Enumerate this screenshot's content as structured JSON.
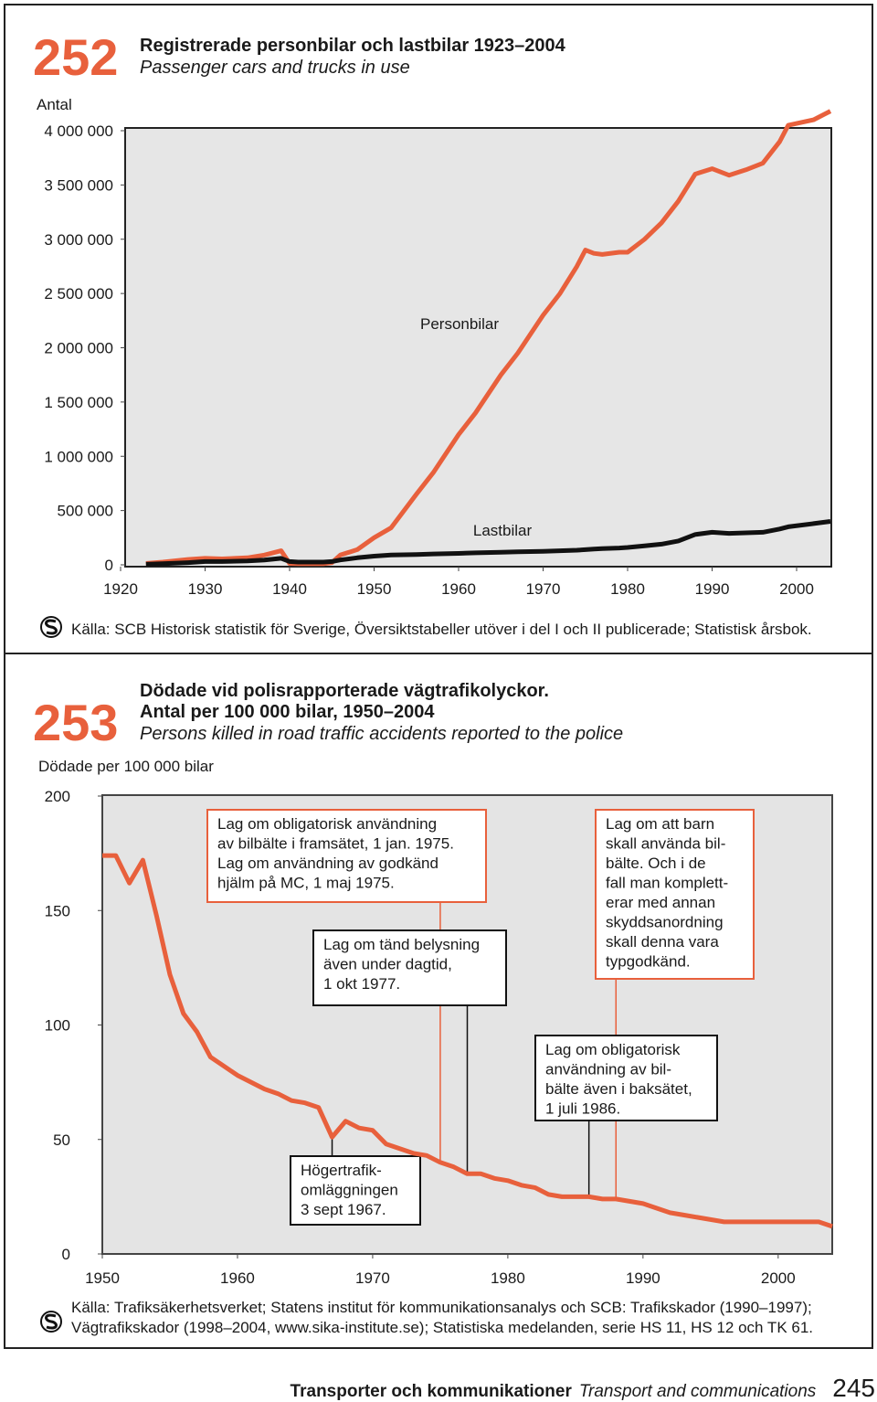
{
  "chart_data": [
    {
      "type": "line",
      "number": "252",
      "title": [
        "Registrerade personbilar och lastbilar 1923–2004"
      ],
      "subtitle": "Passenger cars and trucks in use",
      "y_label": "Antal",
      "x": [
        1923,
        1925,
        1928,
        1930,
        1932,
        1935,
        1937,
        1939,
        1940,
        1941,
        1944,
        1945,
        1946,
        1948,
        1950,
        1952,
        1955,
        1957,
        1960,
        1962,
        1965,
        1967,
        1970,
        1972,
        1974,
        1975,
        1976,
        1977,
        1979,
        1980,
        1982,
        1984,
        1986,
        1988,
        1990,
        1992,
        1994,
        1996,
        1998,
        1999,
        2002,
        2004
      ],
      "series": [
        {
          "name": "Personbilar",
          "color": "#e8603c",
          "values": [
            13000,
            25000,
            50000,
            60000,
            55000,
            65000,
            90000,
            130000,
            13000,
            10000,
            10000,
            20000,
            90000,
            140000,
            250000,
            340000,
            650000,
            850000,
            1200000,
            1400000,
            1750000,
            1950000,
            2300000,
            2500000,
            2750000,
            2900000,
            2870000,
            2860000,
            2880000,
            2880000,
            3000000,
            3150000,
            3350000,
            3600000,
            3650000,
            3590000,
            3640000,
            3700000,
            3900000,
            4050000,
            4100000,
            4180000
          ]
        },
        {
          "name": "Lastbilar",
          "color": "#111111",
          "values": [
            5000,
            10000,
            20000,
            30000,
            30000,
            35000,
            45000,
            60000,
            30000,
            25000,
            25000,
            30000,
            45000,
            65000,
            80000,
            90000,
            95000,
            100000,
            105000,
            110000,
            115000,
            120000,
            125000,
            130000,
            135000,
            140000,
            145000,
            150000,
            155000,
            160000,
            175000,
            190000,
            220000,
            280000,
            300000,
            290000,
            295000,
            300000,
            330000,
            350000,
            380000,
            400000
          ]
        }
      ],
      "xlim": [
        1920,
        2004
      ],
      "xticks": [
        1920,
        1930,
        1940,
        1950,
        1960,
        1970,
        1980,
        1990,
        2000
      ],
      "ylim": [
        0,
        4000000
      ],
      "yticks": [
        0,
        {
          "value": 500000,
          "label": "500 000"
        },
        {
          "value": 1000000,
          "label": "1 000 000"
        },
        {
          "value": 1500000,
          "label": "1 500 000"
        },
        {
          "value": 2000000,
          "label": "2 000 000"
        },
        {
          "value": 2500000,
          "label": "2 500 000"
        },
        {
          "value": 3000000,
          "label": "3 000 000"
        },
        {
          "value": 3500000,
          "label": "3 500 000"
        },
        {
          "value": 4000000,
          "label": "4 000 000"
        }
      ],
      "grid": false,
      "source": [
        "Källa: SCB Historisk statistik för Sverige, Översiktstabeller utöver i del I och II publicerade; Statistisk årsbok."
      ]
    },
    {
      "type": "line",
      "number": "253",
      "title": [
        "Dödade vid polisrapporterade vägtrafikolyckor.",
        "Antal per 100 000 bilar, 1950–2004"
      ],
      "subtitle": "Persons killed in road traffic accidents reported to the police",
      "y_label": "Dödade per 100 000 bilar",
      "x": [
        1950,
        1951,
        1952,
        1953,
        1954,
        1955,
        1956,
        1957,
        1958,
        1959,
        1960,
        1961,
        1962,
        1963,
        1964,
        1965,
        1966,
        1967,
        1968,
        1969,
        1970,
        1971,
        1972,
        1973,
        1974,
        1975,
        1976,
        1977,
        1978,
        1979,
        1980,
        1981,
        1982,
        1983,
        1984,
        1985,
        1986,
        1987,
        1988,
        1989,
        1990,
        1991,
        1992,
        1993,
        1994,
        1995,
        1996,
        1997,
        1998,
        1999,
        2000,
        2001,
        2002,
        2003,
        2004
      ],
      "series": [
        {
          "color": "#e8603c",
          "values": [
            174,
            174,
            162,
            172,
            148,
            122,
            105,
            97,
            86,
            82,
            78,
            75,
            72,
            70,
            67,
            66,
            64,
            51,
            58,
            55,
            54,
            48,
            46,
            44,
            43,
            40,
            38,
            35,
            35,
            33,
            32,
            30,
            29,
            26,
            25,
            25,
            25,
            24,
            24,
            23,
            22,
            20,
            18,
            17,
            16,
            15,
            14,
            14,
            14,
            14,
            14,
            14,
            14,
            14,
            12
          ]
        }
      ],
      "xlim": [
        1950,
        2004
      ],
      "xticks": [
        1950,
        1960,
        1970,
        1980,
        1990,
        2000
      ],
      "ylim": [
        0,
        200
      ],
      "yticks": [
        0,
        50,
        100,
        150,
        200
      ],
      "grid": false,
      "annotations": [
        {
          "x": 1975,
          "color": "#e8603c",
          "text": [
            "Lag om obligatorisk användning",
            "av bilbälte i framsätet, 1 jan. 1975.",
            "Lag om användning av godkänd",
            "hjälm på MC, 1 maj 1975."
          ]
        },
        {
          "x": 1977,
          "color": "#111111",
          "text": [
            "Lag om tänd belysning",
            "även under dagtid,",
            "1 okt 1977."
          ]
        },
        {
          "x": 1988,
          "color": "#e8603c",
          "text": [
            "Lag om att barn",
            "skall använda bil-",
            "bälte. Och i de",
            "fall man komplett-",
            "erar med annan",
            "skyddsanordning",
            "skall denna vara",
            "typgodkänd."
          ]
        },
        {
          "x": 1986,
          "color": "#111111",
          "text": [
            "Lag om obligatorisk",
            "användning av bil-",
            "bälte även i baksätet,",
            "1 juli 1986."
          ]
        },
        {
          "x": 1967,
          "color": "#111111",
          "text": [
            "Högertrafik-",
            "omläggningen",
            "3 sept 1967."
          ]
        }
      ],
      "source": [
        "Källa: Trafiksäkerhetsverket; Statens institut för kommunikationsanalys och SCB: Trafikskador (1990–1997);",
        "Vägtrafikskador (1998–2004, www.sika-institute.se); Statistiska medelanden, serie HS 11, HS 12 och TK 61."
      ]
    }
  ],
  "footer": {
    "section": "Transporter och kommunikationer",
    "section_en": "Transport and communications",
    "page": "245"
  }
}
